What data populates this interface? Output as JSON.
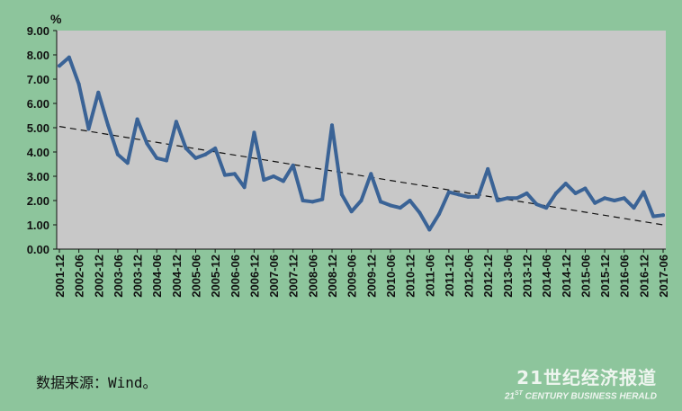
{
  "chart_data": {
    "type": "line",
    "unit": "%",
    "categories": [
      "2001-12",
      "2002-06",
      "2002-12",
      "2003-06",
      "2003-12",
      "2004-06",
      "2004-12",
      "2005-06",
      "2005-12",
      "2006-06",
      "2006-12",
      "2007-06",
      "2007-12",
      "2008-06",
      "2008-12",
      "2009-06",
      "2009-12",
      "2010-06",
      "2010-12",
      "2011-06",
      "2011-12",
      "2012-06",
      "2012-12",
      "2013-06",
      "2013-12",
      "2014-06",
      "2014-12",
      "2015-06",
      "2015-12",
      "2016-06",
      "2016-12",
      "2017-06"
    ],
    "x": [
      "2001-12",
      "2002-03",
      "2002-06",
      "2002-09",
      "2002-12",
      "2003-03",
      "2003-06",
      "2003-09",
      "2003-12",
      "2004-03",
      "2004-06",
      "2004-09",
      "2004-12",
      "2005-03",
      "2005-06",
      "2005-09",
      "2005-12",
      "2006-03",
      "2006-06",
      "2006-09",
      "2006-12",
      "2007-03",
      "2007-06",
      "2007-09",
      "2007-12",
      "2008-03",
      "2008-06",
      "2008-09",
      "2008-12",
      "2009-03",
      "2009-06",
      "2009-09",
      "2009-12",
      "2010-03",
      "2010-06",
      "2010-09",
      "2010-12",
      "2011-03",
      "2011-06",
      "2011-09",
      "2011-12",
      "2012-03",
      "2012-06",
      "2012-09",
      "2012-12",
      "2013-03",
      "2013-06",
      "2013-09",
      "2013-12",
      "2014-03",
      "2014-06",
      "2014-09",
      "2014-12",
      "2015-03",
      "2015-06",
      "2015-09",
      "2015-12",
      "2016-03",
      "2016-06",
      "2016-09",
      "2016-12",
      "2017-03",
      "2017-06"
    ],
    "series": [
      {
        "values": [
          7.55,
          7.9,
          6.8,
          4.95,
          6.45,
          5.1,
          3.9,
          3.55,
          5.35,
          4.35,
          3.75,
          3.65,
          5.25,
          4.15,
          3.75,
          3.9,
          4.15,
          3.05,
          3.1,
          2.55,
          4.8,
          2.85,
          3.0,
          2.8,
          3.45,
          2.0,
          1.95,
          2.05,
          5.1,
          2.25,
          1.55,
          2.0,
          3.1,
          1.95,
          1.8,
          1.7,
          2.0,
          1.5,
          0.8,
          1.45,
          2.35,
          2.25,
          2.15,
          2.15,
          3.3,
          2.0,
          2.1,
          2.1,
          2.3,
          1.85,
          1.7,
          2.3,
          2.7,
          2.3,
          2.5,
          1.9,
          2.1,
          2.0,
          2.1,
          1.7,
          2.35,
          1.35,
          1.4
        ],
        "color": "#3a6396"
      }
    ],
    "trendline": {
      "start": 5.05,
      "end": 1.0,
      "style": "dashed",
      "color": "#111111"
    },
    "ylim": [
      0,
      9
    ],
    "yticks": [
      "0.00",
      "1.00",
      "2.00",
      "3.00",
      "4.00",
      "5.00",
      "6.00",
      "7.00",
      "8.00",
      "9.00"
    ],
    "plot_background": "#c8c8c8",
    "grid": false,
    "legend": "none"
  },
  "source_text": "数据来源：Wind。",
  "watermark": {
    "title": "21世纪经济报道",
    "subtitle_prefix": "21",
    "subtitle_suffix": "ST",
    "subtitle_rest": " CENTURY BUSINESS HERALD"
  },
  "colors": {
    "page_background": "#8dc59c",
    "plot_background": "#c8c8c8",
    "line": "#3a6396"
  }
}
